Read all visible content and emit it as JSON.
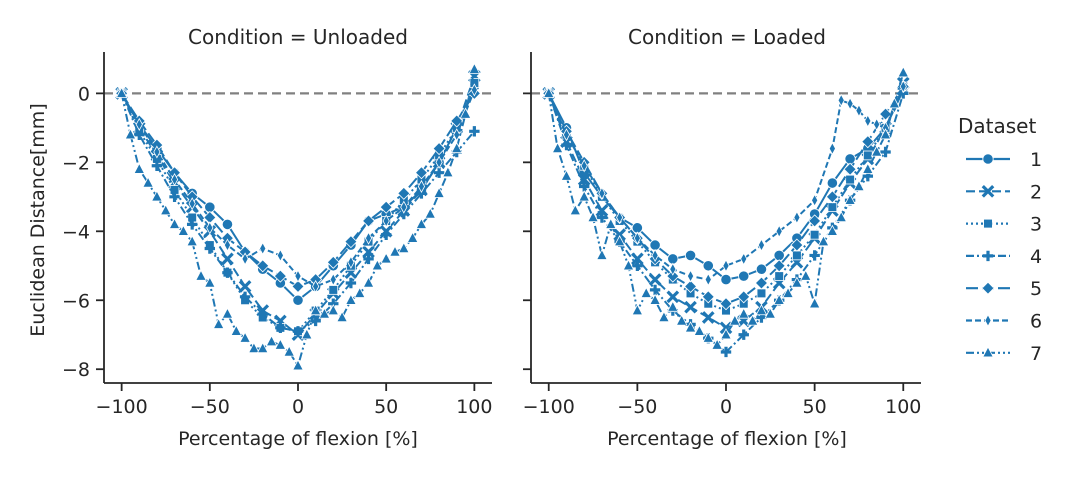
{
  "legend": {
    "title": "Dataset",
    "placement": "right",
    "entries": [
      {
        "label": "1",
        "marker": "circle",
        "dash": "solid"
      },
      {
        "label": "2",
        "marker": "x",
        "dash": "dashed"
      },
      {
        "label": "3",
        "marker": "square",
        "dash": "dotted"
      },
      {
        "label": "4",
        "marker": "plus",
        "dash": "dashdot"
      },
      {
        "label": "5",
        "marker": "diamond",
        "dash": "longdash"
      },
      {
        "label": "6",
        "marker": "thin-diamond",
        "dash": "dash-short"
      },
      {
        "label": "7",
        "marker": "triangle",
        "dash": "dashdotdot"
      }
    ]
  },
  "colors": {
    "series": "#1f77b4",
    "reference_line": "#808080",
    "axes": "#262626"
  },
  "chart_data": [
    {
      "type": "line",
      "title": "Condition = Unloaded",
      "xlabel": "Percentage of flexion [%]",
      "ylabel": "Euclidean Distance[mm]",
      "xlim": [
        -110,
        110
      ],
      "ylim": [
        -8.4,
        1.2
      ],
      "xticks": [
        -100,
        -50,
        0,
        50,
        100
      ],
      "xtick_labels": [
        "−100",
        "−50",
        "0",
        "50",
        "100"
      ],
      "yticks": [
        -8,
        -6,
        -4,
        -2,
        0
      ],
      "ytick_labels": [
        "−8",
        "−6",
        "−4",
        "−2",
        "0"
      ],
      "reference_line_y": 0,
      "grid": false,
      "series": [
        {
          "name": "1",
          "x": [
            -100,
            -90,
            -80,
            -70,
            -60,
            -50,
            -40,
            -30,
            -20,
            -10,
            0,
            10,
            20,
            30,
            40,
            50,
            60,
            70,
            80,
            90,
            100
          ],
          "y": [
            0,
            -0.9,
            -1.6,
            -2.3,
            -2.9,
            -3.3,
            -3.8,
            -4.6,
            -5.1,
            -5.5,
            -6.0,
            -5.6,
            -5.0,
            -4.4,
            -3.7,
            -3.5,
            -3.3,
            -2.8,
            -2.0,
            -1.0,
            0.2
          ]
        },
        {
          "name": "2",
          "x": [
            -100,
            -90,
            -80,
            -70,
            -60,
            -50,
            -40,
            -30,
            -20,
            -10,
            0,
            10,
            20,
            30,
            40,
            50,
            60,
            70,
            80,
            90,
            100
          ],
          "y": [
            0,
            -1.0,
            -1.8,
            -2.6,
            -3.3,
            -4.0,
            -4.8,
            -5.6,
            -6.3,
            -6.6,
            -7.0,
            -6.4,
            -5.8,
            -5.2,
            -4.6,
            -4.0,
            -3.4,
            -2.8,
            -2.0,
            -1.0,
            0.5
          ]
        },
        {
          "name": "3",
          "x": [
            -100,
            -90,
            -80,
            -70,
            -60,
            -50,
            -40,
            -30,
            -20,
            -10,
            0,
            10,
            20,
            30,
            40,
            50,
            60,
            70,
            80,
            90,
            100
          ],
          "y": [
            0,
            -1.1,
            -1.9,
            -2.8,
            -3.6,
            -4.4,
            -5.2,
            -6.0,
            -6.5,
            -6.8,
            -6.9,
            -6.3,
            -5.7,
            -5.0,
            -4.3,
            -3.7,
            -3.1,
            -2.5,
            -1.8,
            -1.0,
            0.3
          ]
        },
        {
          "name": "4",
          "x": [
            -100,
            -90,
            -80,
            -70,
            -60,
            -50,
            -40,
            -30,
            -20,
            -10,
            0,
            10,
            20,
            30,
            40,
            50,
            60,
            70,
            80,
            90,
            100
          ],
          "y": [
            0,
            -1.2,
            -2.1,
            -3.0,
            -3.8,
            -4.5,
            -5.2,
            -5.9,
            -6.4,
            -6.8,
            -6.9,
            -6.6,
            -6.1,
            -5.5,
            -4.8,
            -4.1,
            -3.5,
            -2.9,
            -2.3,
            -1.7,
            -1.1
          ]
        },
        {
          "name": "5",
          "x": [
            -100,
            -90,
            -80,
            -70,
            -60,
            -50,
            -40,
            -30,
            -20,
            -10,
            0,
            10,
            20,
            30,
            40,
            50,
            60,
            70,
            80,
            90,
            100
          ],
          "y": [
            0,
            -0.8,
            -1.5,
            -2.3,
            -3.0,
            -3.6,
            -4.2,
            -4.6,
            -5.0,
            -5.3,
            -5.6,
            -5.4,
            -4.9,
            -4.3,
            -3.7,
            -3.3,
            -2.9,
            -2.3,
            -1.6,
            -0.8,
            0.0
          ]
        },
        {
          "name": "6",
          "x": [
            -100,
            -90,
            -80,
            -70,
            -60,
            -50,
            -40,
            -30,
            -20,
            -10,
            0,
            10,
            20,
            30,
            40,
            50,
            60,
            70,
            80,
            90,
            100
          ],
          "y": [
            0,
            -0.9,
            -1.7,
            -2.5,
            -3.2,
            -3.9,
            -4.4,
            -4.8,
            -4.5,
            -4.7,
            -5.3,
            -5.6,
            -5.4,
            -4.9,
            -4.2,
            -3.7,
            -3.3,
            -2.7,
            -2.0,
            -1.2,
            0.1
          ]
        },
        {
          "name": "7",
          "x": [
            -100,
            -95,
            -90,
            -85,
            -80,
            -75,
            -70,
            -65,
            -60,
            -55,
            -50,
            -45,
            -40,
            -35,
            -30,
            -25,
            -20,
            -15,
            -10,
            -5,
            0,
            5,
            10,
            15,
            20,
            25,
            30,
            35,
            40,
            45,
            50,
            55,
            60,
            65,
            70,
            75,
            80,
            85,
            90,
            95,
            100
          ],
          "y": [
            0,
            -1.2,
            -2.2,
            -2.6,
            -3.0,
            -3.4,
            -3.8,
            -4.0,
            -4.3,
            -5.3,
            -5.5,
            -6.7,
            -6.4,
            -6.9,
            -7.1,
            -7.4,
            -7.4,
            -7.2,
            -7.3,
            -7.5,
            -7.9,
            -7.0,
            -6.3,
            -6.4,
            -6.3,
            -6.5,
            -6.0,
            -5.8,
            -5.5,
            -5.0,
            -4.8,
            -4.6,
            -4.5,
            -4.2,
            -3.8,
            -3.5,
            -2.9,
            -2.3,
            -1.6,
            -0.6,
            0.7
          ]
        }
      ]
    },
    {
      "type": "line",
      "title": "Condition = Loaded",
      "xlabel": "Percentage of flexion [%]",
      "ylabel": "",
      "xlim": [
        -110,
        110
      ],
      "ylim": [
        -8.4,
        1.2
      ],
      "xticks": [
        -100,
        -50,
        0,
        50,
        100
      ],
      "xtick_labels": [
        "−100",
        "−50",
        "0",
        "50",
        "100"
      ],
      "yticks": [
        -8,
        -6,
        -4,
        -2,
        0
      ],
      "ytick_labels": [
        "",
        "",
        "",
        "",
        ""
      ],
      "reference_line_y": 0,
      "grid": false,
      "series": [
        {
          "name": "1",
          "x": [
            -100,
            -90,
            -80,
            -70,
            -60,
            -50,
            -40,
            -30,
            -20,
            -10,
            0,
            10,
            20,
            30,
            40,
            50,
            60,
            70,
            80,
            90,
            100
          ],
          "y": [
            0,
            -1.0,
            -2.3,
            -3.0,
            -3.6,
            -3.9,
            -4.4,
            -4.8,
            -4.7,
            -5.0,
            -5.4,
            -5.3,
            -5.1,
            -4.7,
            -4.2,
            -3.5,
            -2.6,
            -1.9,
            -1.6,
            -1.0,
            0.1
          ]
        },
        {
          "name": "2",
          "x": [
            -100,
            -90,
            -80,
            -70,
            -60,
            -50,
            -40,
            -30,
            -20,
            -10,
            0,
            10,
            20,
            30,
            40,
            50,
            60,
            70,
            80,
            90,
            100
          ],
          "y": [
            0,
            -1.4,
            -2.5,
            -3.4,
            -4.1,
            -4.8,
            -5.4,
            -5.9,
            -6.2,
            -6.5,
            -6.8,
            -6.6,
            -6.2,
            -5.5,
            -4.9,
            -4.2,
            -3.4,
            -2.6,
            -1.9,
            -1.0,
            0.3
          ]
        },
        {
          "name": "3",
          "x": [
            -100,
            -90,
            -80,
            -70,
            -60,
            -50,
            -40,
            -30,
            -20,
            -10,
            0,
            10,
            20,
            30,
            40,
            50,
            60,
            70,
            80,
            90,
            100
          ],
          "y": [
            0,
            -1.2,
            -2.1,
            -3.0,
            -3.7,
            -4.3,
            -4.9,
            -5.4,
            -5.8,
            -6.1,
            -6.3,
            -6.1,
            -5.8,
            -5.3,
            -4.7,
            -4.1,
            -3.3,
            -2.5,
            -1.8,
            -1.0,
            0.2
          ]
        },
        {
          "name": "4",
          "x": [
            -100,
            -90,
            -80,
            -70,
            -60,
            -50,
            -40,
            -30,
            -20,
            -10,
            0,
            10,
            20,
            30,
            40,
            50,
            60,
            70,
            80,
            90,
            100
          ],
          "y": [
            0,
            -1.5,
            -2.7,
            -3.6,
            -4.3,
            -5.0,
            -5.7,
            -6.3,
            -6.7,
            -7.1,
            -7.5,
            -7.0,
            -6.5,
            -6.0,
            -5.4,
            -4.7,
            -3.9,
            -3.1,
            -2.4,
            -1.7,
            0.0
          ]
        },
        {
          "name": "5",
          "x": [
            -100,
            -90,
            -80,
            -70,
            -60,
            -50,
            -40,
            -30,
            -20,
            -10,
            0,
            10,
            20,
            30,
            40,
            50,
            60,
            70,
            80,
            90,
            100
          ],
          "y": [
            0,
            -1.1,
            -2.0,
            -2.9,
            -3.6,
            -4.2,
            -4.8,
            -5.3,
            -5.6,
            -5.9,
            -6.1,
            -5.9,
            -5.5,
            -5.0,
            -4.4,
            -3.7,
            -3.0,
            -2.2,
            -1.4,
            -0.6,
            0.2
          ]
        },
        {
          "name": "6",
          "x": [
            -100,
            -90,
            -80,
            -70,
            -60,
            -50,
            -40,
            -30,
            -20,
            -10,
            0,
            10,
            20,
            30,
            40,
            50,
            60,
            65,
            70,
            75,
            80,
            85,
            90,
            95,
            100
          ],
          "y": [
            0,
            -1.2,
            -2.1,
            -2.9,
            -3.6,
            -4.2,
            -4.7,
            -5.1,
            -5.3,
            -5.4,
            -5.0,
            -4.8,
            -4.4,
            -4.0,
            -3.6,
            -3.1,
            -1.6,
            -0.2,
            -0.3,
            -0.5,
            -0.8,
            -0.9,
            -1.0,
            -0.4,
            0.2
          ]
        },
        {
          "name": "7",
          "x": [
            -100,
            -95,
            -90,
            -85,
            -80,
            -75,
            -70,
            -65,
            -60,
            -55,
            -50,
            -45,
            -40,
            -35,
            -30,
            -25,
            -20,
            -15,
            -10,
            -5,
            0,
            5,
            10,
            15,
            20,
            25,
            30,
            35,
            40,
            45,
            50,
            55,
            60,
            65,
            70,
            75,
            80,
            85,
            90,
            95,
            100
          ],
          "y": [
            0,
            -1.6,
            -2.4,
            -3.4,
            -3.0,
            -3.6,
            -4.7,
            -3.8,
            -4.3,
            -5.0,
            -6.3,
            -5.8,
            -6.0,
            -6.5,
            -6.2,
            -6.6,
            -6.8,
            -6.9,
            -7.1,
            -7.3,
            -7.0,
            -6.6,
            -6.4,
            -6.6,
            -6.3,
            -6.4,
            -6.0,
            -5.8,
            -5.5,
            -5.3,
            -6.1,
            -4.3,
            -4.0,
            -3.6,
            -3.1,
            -2.7,
            -2.2,
            -1.7,
            -1.2,
            -0.3,
            0.6
          ]
        }
      ]
    }
  ]
}
